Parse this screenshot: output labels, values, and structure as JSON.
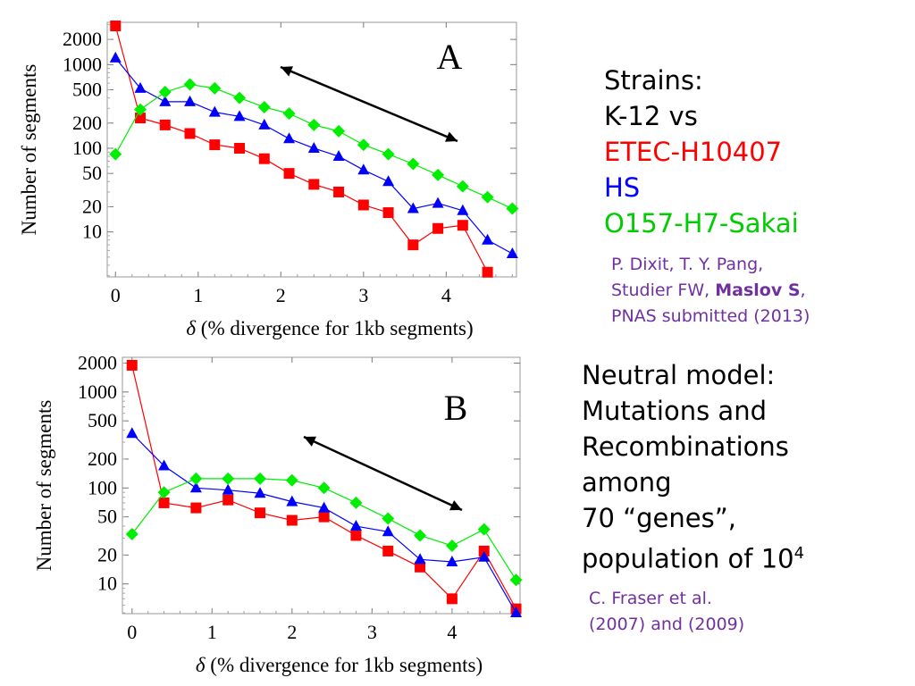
{
  "colors": {
    "red": "#ff0000",
    "blue": "#0000ff",
    "green": "#00ee00",
    "arrow": "#000000"
  },
  "chart_data": [
    {
      "type": "scatter",
      "title": "A",
      "xlabel": "δ (% divergence for 1kb segments)",
      "ylabel": "Number of segments",
      "xlim": [
        -0.1,
        4.85
      ],
      "ylim": [
        2.9,
        3200
      ],
      "yscale": "log",
      "xticks": [
        0,
        1,
        2,
        3,
        4
      ],
      "yticks": [
        10,
        20,
        50,
        100,
        200,
        500,
        1000,
        2000
      ],
      "series": [
        {
          "color": "red",
          "marker": "square",
          "x": [
            0,
            0.3,
            0.6,
            0.9,
            1.2,
            1.5,
            1.8,
            2.1,
            2.4,
            2.7,
            3.0,
            3.3,
            3.6,
            3.9,
            4.2,
            4.5
          ],
          "y": [
            2900,
            230,
            190,
            150,
            110,
            100,
            75,
            50,
            37,
            30,
            21,
            17,
            7,
            11,
            12,
            3.3
          ]
        },
        {
          "color": "blue",
          "marker": "triangle",
          "x": [
            0,
            0.3,
            0.6,
            0.9,
            1.2,
            1.5,
            1.8,
            2.1,
            2.4,
            2.7,
            3.0,
            3.3,
            3.6,
            3.9,
            4.2,
            4.5,
            4.8
          ],
          "y": [
            1200,
            520,
            360,
            360,
            270,
            240,
            190,
            130,
            100,
            80,
            55,
            40,
            19,
            22,
            18,
            8,
            5.5
          ]
        },
        {
          "color": "green",
          "marker": "diamond",
          "x": [
            0,
            0.3,
            0.6,
            0.9,
            1.2,
            1.5,
            1.8,
            2.1,
            2.4,
            2.7,
            3.0,
            3.3,
            3.6,
            3.9,
            4.2,
            4.5,
            4.8
          ],
          "y": [
            85,
            290,
            470,
            580,
            520,
            400,
            310,
            260,
            190,
            160,
            110,
            85,
            65,
            48,
            35,
            26,
            19
          ]
        }
      ]
    },
    {
      "type": "scatter",
      "title": "B",
      "xlabel": "δ (% divergence for 1kb segments)",
      "ylabel": "Number of segments",
      "xlim": [
        -0.12,
        4.85
      ],
      "ylim": [
        4.9,
        2300
      ],
      "yscale": "log",
      "xticks": [
        0,
        1,
        2,
        3,
        4
      ],
      "yticks": [
        10,
        20,
        50,
        100,
        200,
        500,
        1000,
        2000
      ],
      "series": [
        {
          "color": "red",
          "marker": "square",
          "x": [
            0,
            0.4,
            0.8,
            1.2,
            1.6,
            2.0,
            2.4,
            2.8,
            3.2,
            3.6,
            4.0,
            4.4,
            4.8
          ],
          "y": [
            1900,
            70,
            62,
            75,
            55,
            46,
            50,
            32,
            22,
            15,
            7,
            22,
            5.5
          ]
        },
        {
          "color": "blue",
          "marker": "triangle",
          "x": [
            0,
            0.4,
            0.8,
            1.2,
            1.6,
            2.0,
            2.4,
            2.8,
            3.2,
            3.6,
            4.0,
            4.4,
            4.8
          ],
          "y": [
            370,
            170,
            100,
            95,
            88,
            72,
            62,
            40,
            35,
            18,
            17,
            19,
            5
          ]
        },
        {
          "color": "green",
          "marker": "diamond",
          "x": [
            0,
            0.4,
            0.8,
            1.2,
            1.6,
            2.0,
            2.4,
            2.8,
            3.2,
            3.6,
            4.0,
            4.4,
            4.8
          ],
          "y": [
            33,
            90,
            125,
            125,
            125,
            120,
            100,
            70,
            48,
            32,
            25,
            37,
            11
          ]
        }
      ]
    }
  ],
  "text": {
    "strains": {
      "line1": "Strains:",
      "line2": "K-12 vs",
      "line3": "ETEC-H10407",
      "line4": "HS",
      "line5": "O157-H7-Sakai"
    },
    "citation_a": {
      "line1": "P. Dixit, T. Y. Pang,",
      "line2_pre": "Studier FW, ",
      "line2_bold": "Maslov S",
      "line2_post": ",",
      "line3": "PNAS submitted (2013)"
    },
    "model": {
      "line1": "Neutral model:",
      "line2": "Mutations and",
      "line3": "Recombinations",
      "line4": "among",
      "line5": "70 “genes”,",
      "line6_pre": "population of 10",
      "line6_sup": "4"
    },
    "citation_b": {
      "line1": "C. Fraser et al.",
      "line2": "(2007) and (2009)"
    }
  }
}
